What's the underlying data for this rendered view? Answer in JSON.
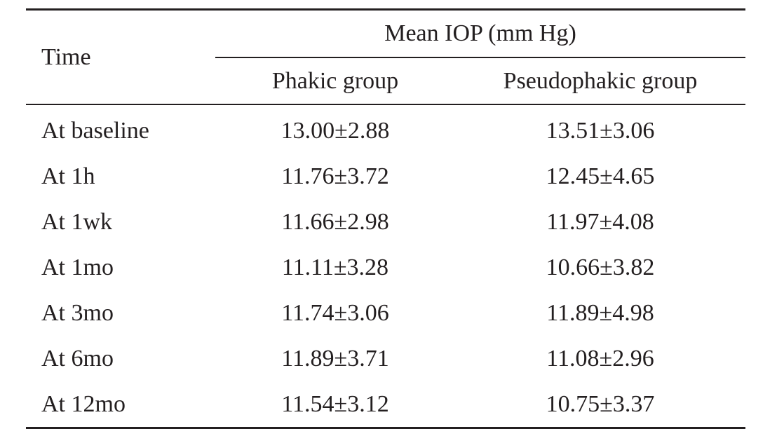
{
  "table": {
    "row_header": "Time",
    "group_header": "Mean IOP (mm Hg)",
    "columns": [
      "Phakic group",
      "Pseudophakic group"
    ],
    "rows": [
      {
        "time": "At baseline",
        "phakic": "13.00±2.88",
        "pseudophakic": "13.51±3.06"
      },
      {
        "time": "At 1h",
        "phakic": "11.76±3.72",
        "pseudophakic": "12.45±4.65"
      },
      {
        "time": "At 1wk",
        "phakic": "11.66±2.98",
        "pseudophakic": "11.97±4.08"
      },
      {
        "time": "At 1mo",
        "phakic": "11.11±3.28",
        "pseudophakic": "10.66±3.82"
      },
      {
        "time": "At 3mo",
        "phakic": "11.74±3.06",
        "pseudophakic": "11.89±4.98"
      },
      {
        "time": "At 6mo",
        "phakic": "11.89±3.71",
        "pseudophakic": "11.08±2.96"
      },
      {
        "time": "At 12mo",
        "phakic": "11.54±3.12",
        "pseudophakic": "10.75±3.37"
      }
    ]
  }
}
